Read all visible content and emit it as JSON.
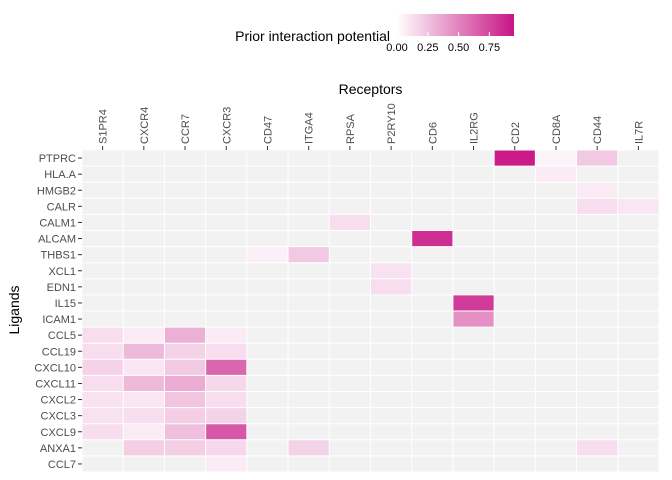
{
  "chart_data": {
    "type": "heatmap",
    "xlabel": "Receptors",
    "ylabel": "Ligands",
    "x_axis_position": "top",
    "legend": {
      "title": "Prior interaction potential",
      "placement": "top",
      "ticks": [
        0.0,
        0.25,
        0.5,
        0.75
      ],
      "tick_labels": [
        "0.00",
        "0.25",
        "0.50",
        "0.75"
      ],
      "range": [
        0,
        0.95
      ]
    },
    "colors": {
      "low": "#ffffff",
      "high": "#c71585",
      "panel_background": "#f2f2f2",
      "grid_line": "#ffffff",
      "tick_text": "#4d4d4d"
    },
    "receptors": [
      "S1PR4",
      "CXCR4",
      "CCR7",
      "CXCR3",
      "CD47",
      "ITGA4",
      "RPSA",
      "P2RY10",
      "CD6",
      "IL2RG",
      "CD2",
      "CD8A",
      "CD44",
      "IL7R"
    ],
    "ligands": [
      "PTPRC",
      "HLA.A",
      "HMGB2",
      "CALR",
      "CALM1",
      "ALCAM",
      "THBS1",
      "XCL1",
      "EDN1",
      "IL15",
      "ICAM1",
      "CCL5",
      "CCL19",
      "CXCL10",
      "CXCL11",
      "CXCL2",
      "CXCL3",
      "CXCL9",
      "ANXA1",
      "CCL7"
    ],
    "cells": [
      {
        "ligand": "PTPRC",
        "receptor": "CD2",
        "value": 0.92
      },
      {
        "ligand": "PTPRC",
        "receptor": "CD8A",
        "value": 0.05
      },
      {
        "ligand": "PTPRC",
        "receptor": "CD44",
        "value": 0.22
      },
      {
        "ligand": "HLA.A",
        "receptor": "CD8A",
        "value": 0.08
      },
      {
        "ligand": "HMGB2",
        "receptor": "CD44",
        "value": 0.08
      },
      {
        "ligand": "CALR",
        "receptor": "CD44",
        "value": 0.14
      },
      {
        "ligand": "CALR",
        "receptor": "IL7R",
        "value": 0.1
      },
      {
        "ligand": "CALM1",
        "receptor": "RPSA",
        "value": 0.14
      },
      {
        "ligand": "ALCAM",
        "receptor": "CD6",
        "value": 0.85
      },
      {
        "ligand": "THBS1",
        "receptor": "CD47",
        "value": 0.06
      },
      {
        "ligand": "THBS1",
        "receptor": "ITGA4",
        "value": 0.22
      },
      {
        "ligand": "XCL1",
        "receptor": "P2RY10",
        "value": 0.12
      },
      {
        "ligand": "EDN1",
        "receptor": "P2RY10",
        "value": 0.14
      },
      {
        "ligand": "IL15",
        "receptor": "IL2RG",
        "value": 0.8
      },
      {
        "ligand": "ICAM1",
        "receptor": "IL2RG",
        "value": 0.45
      },
      {
        "ligand": "CCL5",
        "receptor": "S1PR4",
        "value": 0.14
      },
      {
        "ligand": "CCL5",
        "receptor": "CXCR4",
        "value": 0.08
      },
      {
        "ligand": "CCL5",
        "receptor": "CCR7",
        "value": 0.32
      },
      {
        "ligand": "CCL5",
        "receptor": "CXCR3",
        "value": 0.08
      },
      {
        "ligand": "CCL19",
        "receptor": "S1PR4",
        "value": 0.14
      },
      {
        "ligand": "CCL19",
        "receptor": "CXCR4",
        "value": 0.28
      },
      {
        "ligand": "CCL19",
        "receptor": "CCR7",
        "value": 0.18
      },
      {
        "ligand": "CCL19",
        "receptor": "CXCR3",
        "value": 0.14
      },
      {
        "ligand": "CXCL10",
        "receptor": "S1PR4",
        "value": 0.18
      },
      {
        "ligand": "CXCL10",
        "receptor": "CXCR4",
        "value": 0.1
      },
      {
        "ligand": "CXCL10",
        "receptor": "CCR7",
        "value": 0.22
      },
      {
        "ligand": "CXCL10",
        "receptor": "CXCR3",
        "value": 0.62
      },
      {
        "ligand": "CXCL11",
        "receptor": "S1PR4",
        "value": 0.14
      },
      {
        "ligand": "CXCL11",
        "receptor": "CXCR4",
        "value": 0.28
      },
      {
        "ligand": "CXCL11",
        "receptor": "CCR7",
        "value": 0.34
      },
      {
        "ligand": "CXCL11",
        "receptor": "CXCR3",
        "value": 0.16
      },
      {
        "ligand": "CXCL2",
        "receptor": "S1PR4",
        "value": 0.12
      },
      {
        "ligand": "CXCL2",
        "receptor": "CXCR4",
        "value": 0.1
      },
      {
        "ligand": "CXCL2",
        "receptor": "CCR7",
        "value": 0.24
      },
      {
        "ligand": "CXCL2",
        "receptor": "CXCR3",
        "value": 0.14
      },
      {
        "ligand": "CXCL3",
        "receptor": "S1PR4",
        "value": 0.12
      },
      {
        "ligand": "CXCL3",
        "receptor": "CXCR4",
        "value": 0.14
      },
      {
        "ligand": "CXCL3",
        "receptor": "CCR7",
        "value": 0.2
      },
      {
        "ligand": "CXCL3",
        "receptor": "CXCR3",
        "value": 0.18
      },
      {
        "ligand": "CXCL9",
        "receptor": "S1PR4",
        "value": 0.14
      },
      {
        "ligand": "CXCL9",
        "receptor": "CXCR4",
        "value": 0.08
      },
      {
        "ligand": "CXCL9",
        "receptor": "CCR7",
        "value": 0.26
      },
      {
        "ligand": "CXCL9",
        "receptor": "CXCR3",
        "value": 0.68
      },
      {
        "ligand": "ANXA1",
        "receptor": "CXCR4",
        "value": 0.2
      },
      {
        "ligand": "ANXA1",
        "receptor": "CCR7",
        "value": 0.2
      },
      {
        "ligand": "ANXA1",
        "receptor": "CXCR3",
        "value": 0.16
      },
      {
        "ligand": "ANXA1",
        "receptor": "ITGA4",
        "value": 0.18
      },
      {
        "ligand": "ANXA1",
        "receptor": "CD44",
        "value": 0.14
      },
      {
        "ligand": "CCL7",
        "receptor": "CXCR3",
        "value": 0.08
      }
    ]
  }
}
